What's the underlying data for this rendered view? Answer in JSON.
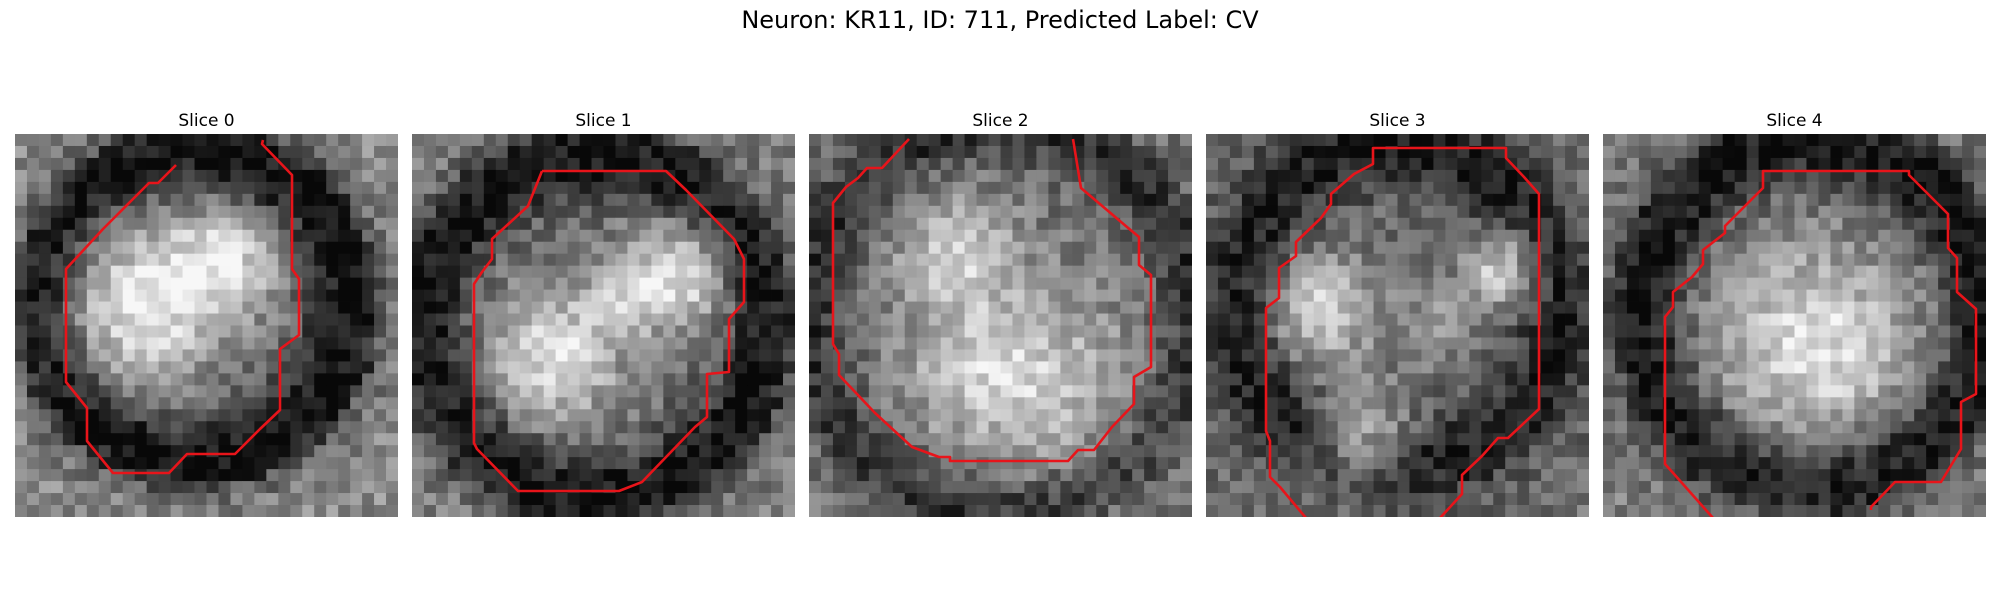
{
  "figure": {
    "title": "Neuron: KR11, ID: 711, Predicted Label: CV"
  },
  "contour_color": "#e8141a",
  "panels": [
    {
      "title": "Slice 0",
      "seed": 11,
      "blobs": [
        [
          0.33,
          0.45,
          0.2,
          0.9
        ],
        [
          0.55,
          0.33,
          0.14,
          0.75
        ]
      ],
      "ring": [
        0.47,
        0.45,
        0.4,
        0.075,
        0.82
      ],
      "outer": 0.86
    },
    {
      "title": "Slice 1",
      "seed": 23,
      "blobs": [
        [
          0.37,
          0.58,
          0.17,
          0.85
        ],
        [
          0.7,
          0.37,
          0.14,
          0.8
        ],
        [
          0.55,
          0.42,
          0.1,
          0.45
        ]
      ],
      "ring": [
        0.48,
        0.5,
        0.44,
        0.07,
        0.8
      ],
      "outer": 0.72
    },
    {
      "title": "Slice 2",
      "seed": 37,
      "blobs": [
        [
          0.38,
          0.3,
          0.15,
          0.65
        ],
        [
          0.62,
          0.65,
          0.26,
          0.55
        ],
        [
          0.42,
          0.6,
          0.2,
          0.4
        ]
      ],
      "ring": [
        0.5,
        0.48,
        0.5,
        0.06,
        0.55
      ],
      "outer": 0.6
    },
    {
      "title": "Slice 3",
      "seed": 53,
      "blobs": [
        [
          0.3,
          0.46,
          0.13,
          0.8
        ],
        [
          0.4,
          0.8,
          0.12,
          0.75
        ],
        [
          0.78,
          0.35,
          0.1,
          0.8
        ],
        [
          0.6,
          0.5,
          0.1,
          0.35
        ]
      ],
      "ring": [
        0.5,
        0.45,
        0.42,
        0.08,
        0.7
      ],
      "outer": 0.55
    },
    {
      "title": "Slice 4",
      "seed": 71,
      "blobs": [
        [
          0.55,
          0.55,
          0.25,
          0.85
        ]
      ],
      "ring": [
        0.55,
        0.47,
        0.45,
        0.075,
        0.8
      ],
      "outer": 0.72
    }
  ]
}
